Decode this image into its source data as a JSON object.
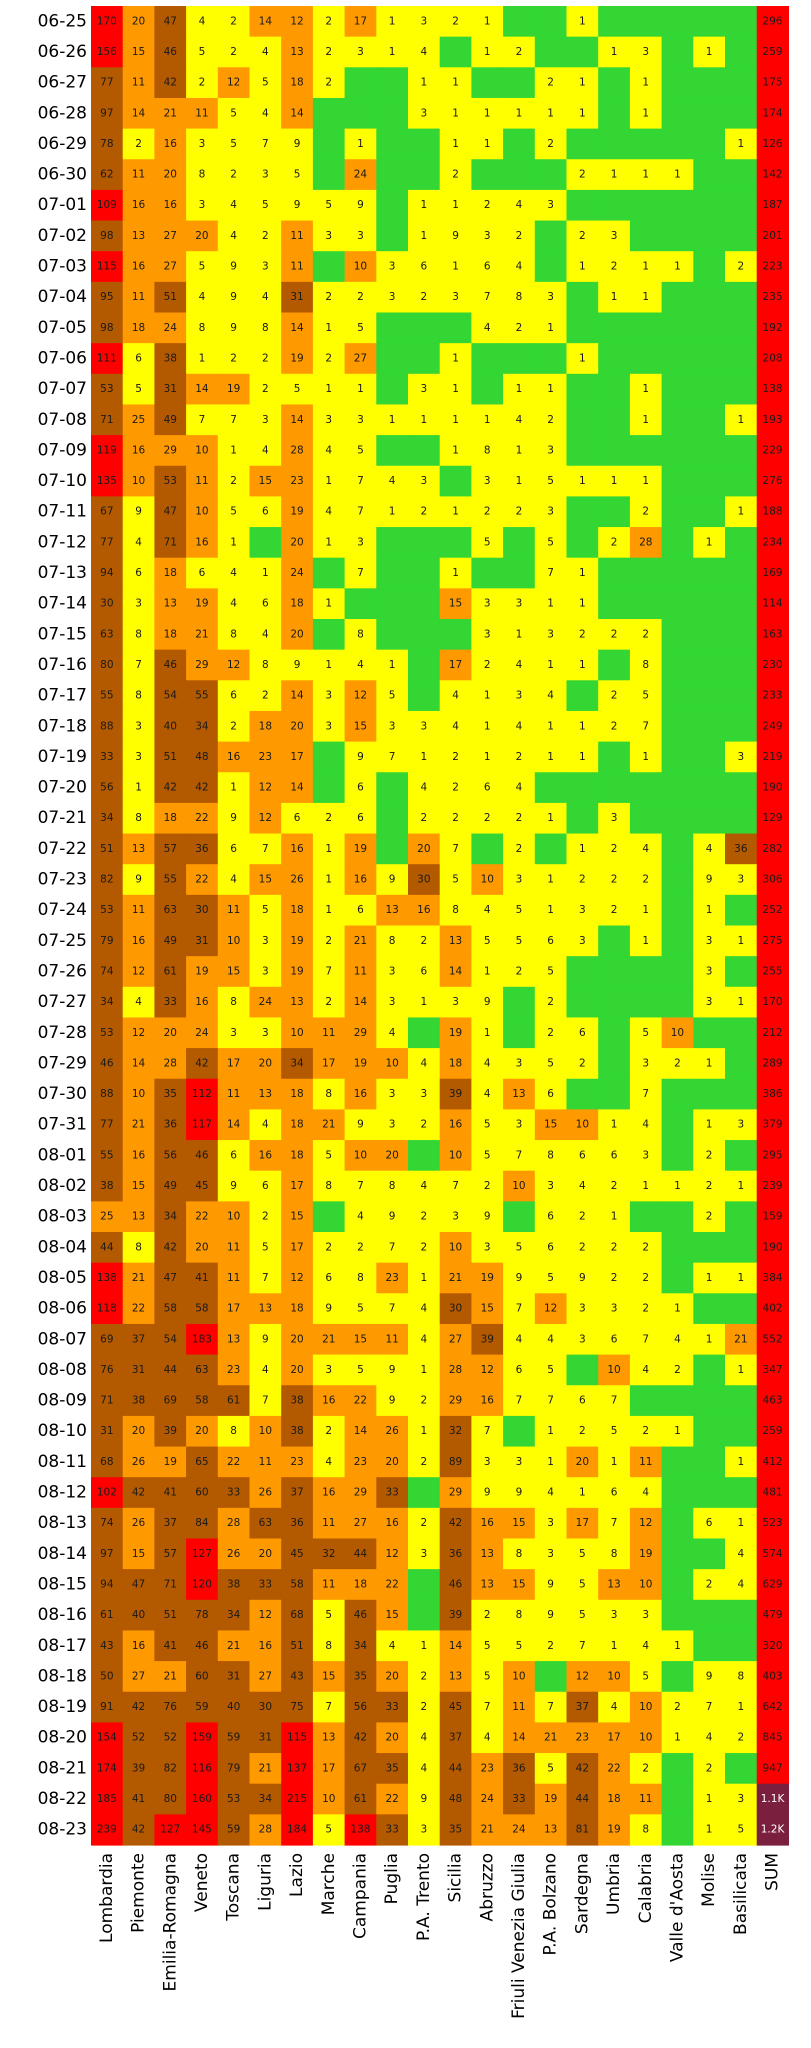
{
  "chart_data": {
    "type": "heatmap",
    "title": "",
    "columns": [
      "Lombardia",
      "Piemonte",
      "Emilia-Romagna",
      "Veneto",
      "Toscana",
      "Liguria",
      "Lazio",
      "Marche",
      "Campania",
      "Puglia",
      "P.A. Trento",
      "Sicilia",
      "Abruzzo",
      "Friuli Venezia Giulia",
      "P.A. Bolzano",
      "Sardegna",
      "Umbria",
      "Calabria",
      "Valle d'Aosta",
      "Molise",
      "Basilicata",
      "SUM"
    ],
    "rows": [
      "06-25",
      "06-26",
      "06-27",
      "06-28",
      "06-29",
      "06-30",
      "07-01",
      "07-02",
      "07-03",
      "07-04",
      "07-05",
      "07-06",
      "07-07",
      "07-08",
      "07-09",
      "07-10",
      "07-11",
      "07-12",
      "07-13",
      "07-14",
      "07-15",
      "07-16",
      "07-17",
      "07-18",
      "07-19",
      "07-20",
      "07-21",
      "07-22",
      "07-23",
      "07-24",
      "07-25",
      "07-26",
      "07-27",
      "07-28",
      "07-29",
      "07-30",
      "07-31",
      "08-01",
      "08-02",
      "08-03",
      "08-04",
      "08-05",
      "08-06",
      "08-07",
      "08-08",
      "08-09",
      "08-10",
      "08-11",
      "08-12",
      "08-13",
      "08-14",
      "08-15",
      "08-16",
      "08-17",
      "08-18",
      "08-19",
      "08-20",
      "08-21",
      "08-22",
      "08-23"
    ],
    "values": [
      [
        170,
        20,
        47,
        4,
        2,
        14,
        12,
        2,
        17,
        1,
        3,
        2,
        1,
        0,
        0,
        1,
        0,
        0,
        0,
        0,
        0,
        296
      ],
      [
        156,
        15,
        46,
        5,
        2,
        4,
        13,
        2,
        3,
        1,
        4,
        0,
        1,
        2,
        0,
        0,
        1,
        3,
        0,
        1,
        0,
        259
      ],
      [
        77,
        11,
        42,
        2,
        12,
        5,
        18,
        2,
        0,
        0,
        1,
        1,
        0,
        0,
        2,
        1,
        0,
        1,
        0,
        0,
        0,
        175
      ],
      [
        97,
        14,
        21,
        11,
        5,
        4,
        14,
        0,
        0,
        0,
        3,
        1,
        1,
        1,
        1,
        1,
        0,
        1,
        0,
        0,
        0,
        174
      ],
      [
        78,
        2,
        16,
        3,
        5,
        7,
        9,
        0,
        1,
        0,
        0,
        1,
        1,
        0,
        2,
        0,
        0,
        0,
        0,
        0,
        1,
        126
      ],
      [
        62,
        11,
        20,
        8,
        2,
        3,
        5,
        0,
        24,
        0,
        0,
        2,
        0,
        0,
        0,
        2,
        1,
        1,
        1,
        0,
        0,
        142
      ],
      [
        109,
        16,
        16,
        3,
        4,
        5,
        9,
        5,
        9,
        0,
        1,
        1,
        2,
        4,
        3,
        0,
        0,
        0,
        0,
        0,
        0,
        187
      ],
      [
        98,
        13,
        27,
        20,
        4,
        2,
        11,
        3,
        3,
        0,
        1,
        9,
        3,
        2,
        0,
        2,
        3,
        0,
        0,
        0,
        0,
        201
      ],
      [
        115,
        16,
        27,
        5,
        9,
        3,
        11,
        0,
        10,
        3,
        6,
        1,
        6,
        4,
        0,
        1,
        2,
        1,
        1,
        0,
        2,
        223
      ],
      [
        95,
        11,
        51,
        4,
        9,
        4,
        31,
        2,
        2,
        3,
        2,
        3,
        7,
        8,
        3,
        0,
        1,
        1,
        0,
        0,
        0,
        235
      ],
      [
        98,
        18,
        24,
        8,
        9,
        8,
        14,
        1,
        5,
        0,
        0,
        0,
        4,
        2,
        1,
        0,
        0,
        0,
        0,
        0,
        0,
        192
      ],
      [
        111,
        6,
        38,
        1,
        2,
        2,
        19,
        2,
        27,
        0,
        0,
        1,
        0,
        0,
        0,
        1,
        0,
        0,
        0,
        0,
        0,
        208
      ],
      [
        53,
        5,
        31,
        14,
        19,
        2,
        5,
        1,
        1,
        0,
        3,
        1,
        0,
        1,
        1,
        0,
        0,
        1,
        0,
        0,
        0,
        138
      ],
      [
        71,
        25,
        49,
        7,
        7,
        3,
        14,
        3,
        3,
        1,
        1,
        1,
        1,
        4,
        2,
        0,
        0,
        1,
        0,
        0,
        1,
        193
      ],
      [
        119,
        16,
        29,
        10,
        1,
        4,
        28,
        4,
        5,
        0,
        0,
        1,
        8,
        1,
        3,
        0,
        0,
        0,
        0,
        0,
        0,
        229
      ],
      [
        135,
        10,
        53,
        11,
        2,
        15,
        23,
        1,
        7,
        4,
        3,
        0,
        3,
        1,
        5,
        1,
        1,
        1,
        0,
        0,
        0,
        276
      ],
      [
        67,
        9,
        47,
        10,
        5,
        6,
        19,
        4,
        7,
        1,
        2,
        1,
        2,
        2,
        3,
        0,
        0,
        2,
        0,
        0,
        1,
        188
      ],
      [
        77,
        4,
        71,
        16,
        1,
        0,
        20,
        1,
        3,
        0,
        0,
        0,
        5,
        0,
        5,
        0,
        2,
        28,
        0,
        1,
        0,
        234
      ],
      [
        94,
        6,
        18,
        6,
        4,
        1,
        24,
        0,
        7,
        0,
        0,
        1,
        0,
        0,
        7,
        1,
        0,
        0,
        0,
        0,
        0,
        169
      ],
      [
        30,
        3,
        13,
        19,
        4,
        6,
        18,
        1,
        0,
        0,
        0,
        15,
        3,
        3,
        1,
        1,
        0,
        0,
        0,
        0,
        0,
        114
      ],
      [
        63,
        8,
        18,
        21,
        8,
        4,
        20,
        0,
        8,
        0,
        0,
        0,
        3,
        1,
        3,
        2,
        2,
        2,
        0,
        0,
        0,
        163
      ],
      [
        80,
        7,
        46,
        29,
        12,
        8,
        9,
        1,
        4,
        1,
        0,
        17,
        2,
        4,
        1,
        1,
        0,
        8,
        0,
        0,
        0,
        230
      ],
      [
        55,
        8,
        54,
        55,
        6,
        2,
        14,
        3,
        12,
        5,
        0,
        4,
        1,
        3,
        4,
        0,
        2,
        5,
        0,
        0,
        0,
        233
      ],
      [
        88,
        3,
        40,
        34,
        2,
        18,
        20,
        3,
        15,
        3,
        3,
        4,
        1,
        4,
        1,
        1,
        2,
        7,
        0,
        0,
        0,
        249
      ],
      [
        33,
        3,
        51,
        48,
        16,
        23,
        17,
        0,
        9,
        7,
        1,
        2,
        1,
        2,
        1,
        1,
        0,
        1,
        0,
        0,
        3,
        219
      ],
      [
        56,
        1,
        42,
        42,
        1,
        12,
        14,
        0,
        6,
        0,
        4,
        2,
        6,
        4,
        0,
        0,
        0,
        0,
        0,
        0,
        0,
        190
      ],
      [
        34,
        8,
        18,
        22,
        9,
        12,
        6,
        2,
        6,
        0,
        2,
        2,
        2,
        2,
        1,
        0,
        3,
        0,
        0,
        0,
        0,
        129
      ],
      [
        51,
        13,
        57,
        36,
        6,
        7,
        16,
        1,
        19,
        0,
        20,
        7,
        0,
        2,
        0,
        1,
        2,
        4,
        0,
        4,
        36,
        282
      ],
      [
        82,
        9,
        55,
        22,
        4,
        15,
        26,
        1,
        16,
        9,
        30,
        5,
        10,
        3,
        1,
        2,
        2,
        2,
        0,
        9,
        3,
        306
      ],
      [
        53,
        11,
        63,
        30,
        11,
        5,
        18,
        1,
        6,
        13,
        16,
        8,
        4,
        5,
        1,
        3,
        2,
        1,
        0,
        1,
        0,
        252
      ],
      [
        79,
        16,
        49,
        31,
        10,
        3,
        19,
        2,
        21,
        8,
        2,
        13,
        5,
        5,
        6,
        3,
        0,
        1,
        0,
        3,
        1,
        275
      ],
      [
        74,
        12,
        61,
        19,
        15,
        3,
        19,
        7,
        11,
        3,
        6,
        14,
        1,
        2,
        5,
        0,
        0,
        0,
        0,
        3,
        0,
        255
      ],
      [
        34,
        4,
        33,
        16,
        8,
        24,
        13,
        2,
        14,
        3,
        1,
        3,
        9,
        0,
        2,
        0,
        0,
        0,
        0,
        3,
        1,
        170
      ],
      [
        53,
        12,
        20,
        24,
        3,
        3,
        10,
        11,
        29,
        4,
        0,
        19,
        1,
        0,
        2,
        6,
        0,
        5,
        10,
        0,
        0,
        212
      ],
      [
        46,
        14,
        28,
        42,
        17,
        20,
        34,
        17,
        19,
        10,
        4,
        18,
        4,
        3,
        5,
        2,
        0,
        3,
        2,
        1,
        0,
        289
      ],
      [
        88,
        10,
        35,
        112,
        11,
        13,
        18,
        8,
        16,
        3,
        3,
        39,
        4,
        13,
        6,
        0,
        0,
        7,
        0,
        0,
        0,
        386
      ],
      [
        77,
        21,
        36,
        117,
        14,
        4,
        18,
        21,
        9,
        3,
        2,
        16,
        5,
        3,
        15,
        10,
        1,
        4,
        0,
        1,
        3,
        379
      ],
      [
        55,
        16,
        56,
        46,
        6,
        16,
        18,
        5,
        10,
        20,
        0,
        10,
        5,
        7,
        8,
        6,
        6,
        3,
        0,
        2,
        0,
        295
      ],
      [
        38,
        15,
        49,
        45,
        9,
        6,
        17,
        8,
        7,
        8,
        4,
        7,
        2,
        10,
        3,
        4,
        2,
        1,
        1,
        2,
        1,
        239
      ],
      [
        25,
        13,
        34,
        22,
        10,
        2,
        15,
        0,
        4,
        9,
        2,
        3,
        9,
        0,
        6,
        2,
        1,
        0,
        0,
        2,
        0,
        159
      ],
      [
        44,
        8,
        42,
        20,
        11,
        5,
        17,
        2,
        2,
        7,
        2,
        10,
        3,
        5,
        6,
        2,
        2,
        2,
        0,
        0,
        0,
        190
      ],
      [
        138,
        21,
        47,
        41,
        11,
        7,
        12,
        6,
        8,
        23,
        1,
        21,
        19,
        9,
        5,
        9,
        2,
        2,
        0,
        1,
        1,
        384
      ],
      [
        118,
        22,
        58,
        58,
        17,
        13,
        18,
        9,
        5,
        7,
        4,
        30,
        15,
        7,
        12,
        3,
        3,
        2,
        1,
        0,
        0,
        402
      ],
      [
        69,
        37,
        54,
        183,
        13,
        9,
        20,
        21,
        15,
        11,
        4,
        27,
        39,
        4,
        4,
        3,
        6,
        7,
        4,
        1,
        21,
        552
      ],
      [
        76,
        31,
        44,
        63,
        23,
        4,
        20,
        3,
        5,
        9,
        1,
        28,
        12,
        6,
        5,
        0,
        10,
        4,
        2,
        0,
        1,
        347
      ],
      [
        71,
        38,
        69,
        58,
        61,
        7,
        38,
        16,
        22,
        9,
        2,
        29,
        16,
        7,
        7,
        6,
        7,
        0,
        0,
        0,
        0,
        463
      ],
      [
        31,
        20,
        39,
        20,
        8,
        10,
        38,
        2,
        14,
        26,
        1,
        32,
        7,
        0,
        1,
        2,
        5,
        2,
        1,
        0,
        0,
        259
      ],
      [
        68,
        26,
        19,
        65,
        22,
        11,
        23,
        4,
        23,
        20,
        2,
        89,
        3,
        3,
        1,
        20,
        1,
        11,
        0,
        0,
        1,
        412
      ],
      [
        102,
        42,
        41,
        60,
        33,
        26,
        37,
        16,
        29,
        33,
        0,
        29,
        9,
        9,
        4,
        1,
        6,
        4,
        0,
        0,
        0,
        481
      ],
      [
        74,
        26,
        37,
        84,
        28,
        63,
        36,
        11,
        27,
        16,
        2,
        42,
        16,
        15,
        3,
        17,
        7,
        12,
        0,
        6,
        1,
        523
      ],
      [
        97,
        15,
        57,
        127,
        26,
        20,
        45,
        32,
        44,
        12,
        3,
        36,
        13,
        8,
        3,
        5,
        8,
        19,
        0,
        0,
        4,
        574
      ],
      [
        94,
        47,
        71,
        120,
        38,
        33,
        58,
        11,
        18,
        22,
        0,
        46,
        13,
        15,
        9,
        5,
        13,
        10,
        0,
        2,
        4,
        629
      ],
      [
        61,
        40,
        51,
        78,
        34,
        12,
        68,
        5,
        46,
        15,
        0,
        39,
        2,
        8,
        9,
        5,
        3,
        3,
        0,
        0,
        0,
        479
      ],
      [
        43,
        16,
        41,
        46,
        21,
        16,
        51,
        8,
        34,
        4,
        1,
        14,
        5,
        5,
        2,
        7,
        1,
        4,
        1,
        0,
        0,
        320
      ],
      [
        50,
        27,
        21,
        60,
        31,
        27,
        43,
        15,
        35,
        20,
        2,
        13,
        5,
        10,
        0,
        12,
        10,
        5,
        0,
        9,
        8,
        403
      ],
      [
        91,
        42,
        76,
        59,
        40,
        30,
        75,
        7,
        56,
        33,
        2,
        45,
        7,
        11,
        7,
        37,
        4,
        10,
        2,
        7,
        1,
        642
      ],
      [
        154,
        52,
        52,
        159,
        59,
        31,
        115,
        13,
        42,
        20,
        4,
        37,
        4,
        14,
        21,
        23,
        17,
        10,
        1,
        4,
        2,
        845
      ],
      [
        174,
        39,
        82,
        116,
        79,
        21,
        137,
        17,
        67,
        35,
        4,
        44,
        23,
        36,
        5,
        42,
        22,
        2,
        0,
        2,
        0,
        947
      ],
      [
        185,
        41,
        80,
        160,
        53,
        34,
        215,
        10,
        61,
        22,
        9,
        48,
        24,
        33,
        19,
        44,
        18,
        11,
        0,
        1,
        3,
        1100
      ],
      [
        239,
        42,
        127,
        145,
        59,
        28,
        184,
        5,
        138,
        33,
        3,
        35,
        21,
        24,
        13,
        81,
        19,
        8,
        0,
        1,
        5,
        1200
      ]
    ],
    "sum_labels": [
      "296",
      "259",
      "175",
      "174",
      "126",
      "142",
      "187",
      "201",
      "223",
      "235",
      "192",
      "208",
      "138",
      "193",
      "229",
      "276",
      "188",
      "234",
      "169",
      "114",
      "163",
      "230",
      "233",
      "249",
      "219",
      "190",
      "129",
      "282",
      "306",
      "252",
      "275",
      "255",
      "170",
      "212",
      "289",
      "386",
      "379",
      "295",
      "239",
      "159",
      "190",
      "384",
      "402",
      "552",
      "347",
      "463",
      "259",
      "412",
      "481",
      "523",
      "574",
      "629",
      "479",
      "320",
      "403",
      "642",
      "845",
      "947",
      "1.1K",
      "1.2K"
    ],
    "colors": {
      "zero": "#33d633",
      "low": "#ffff00",
      "medium": "#ff9900",
      "high": "#b35900",
      "very_high": "#ff0000",
      "extreme": "#7a1f3d",
      "sum": "#ff0000"
    },
    "legend": "none",
    "grid": false
  }
}
